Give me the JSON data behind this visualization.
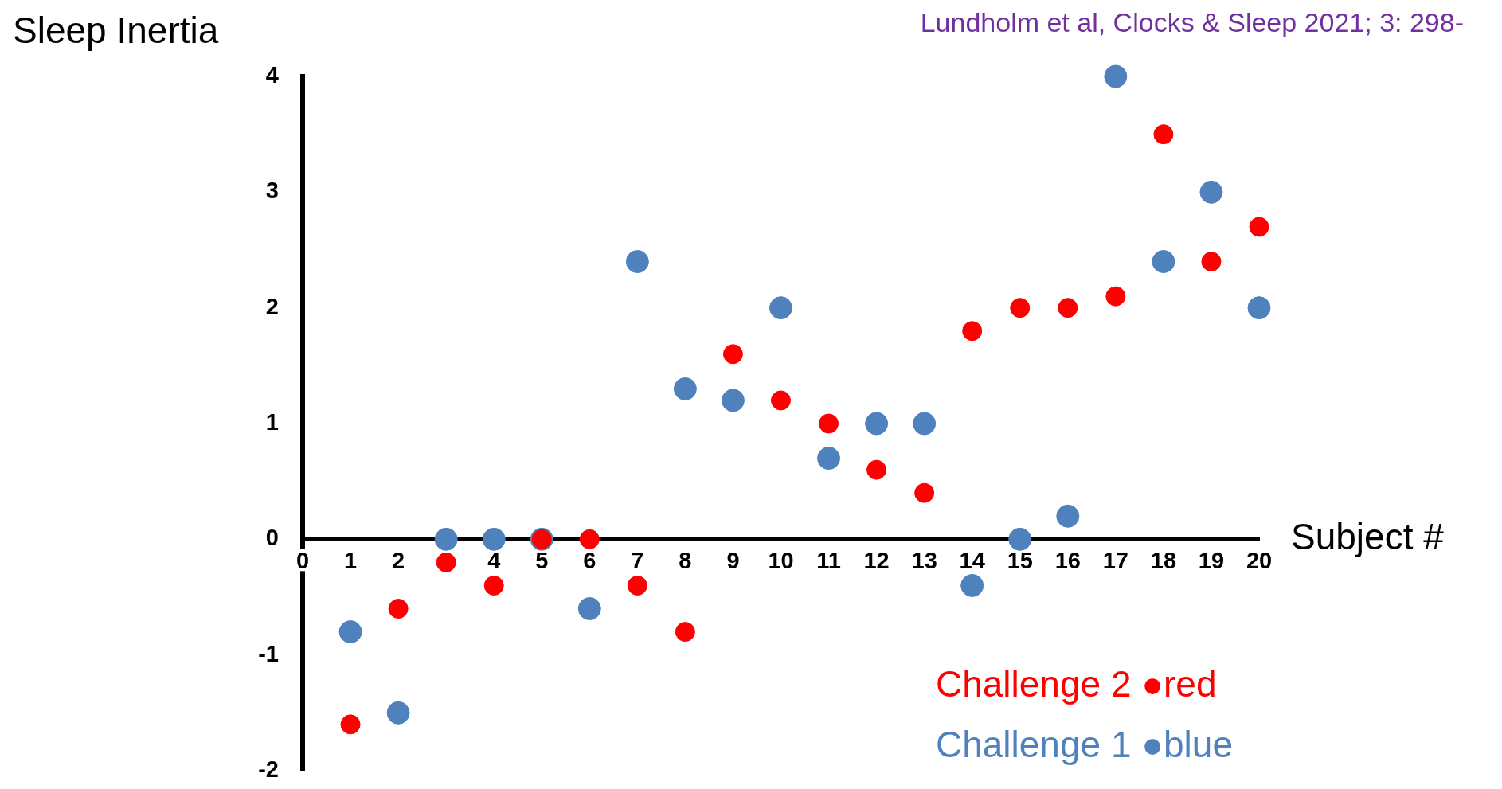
{
  "chart_data": {
    "type": "scatter",
    "ylabel": "Sleep Inertia",
    "xlabel": "Subject #",
    "annotations": [
      "Lundholm et al, Clocks & Sleep 2021; 3: 298-"
    ],
    "x": [
      1,
      2,
      3,
      4,
      5,
      6,
      7,
      8,
      9,
      10,
      11,
      12,
      13,
      14,
      15,
      16,
      17,
      18,
      19,
      20
    ],
    "series": [
      {
        "name": "Challenge 1 ●blue",
        "color": "#4f81bd",
        "values": [
          -0.8,
          -1.5,
          0,
          0,
          0,
          -0.6,
          2.4,
          1.3,
          1.2,
          2,
          0.7,
          1,
          1,
          -0.4,
          0,
          0.2,
          4,
          2.4,
          3,
          2
        ]
      },
      {
        "name": "Challenge 2 ●red",
        "color": "#ff0000",
        "values": [
          -1.6,
          -0.6,
          -0.2,
          -0.4,
          0,
          0,
          -0.4,
          -0.8,
          1.6,
          1.2,
          1,
          0.6,
          0.4,
          1.8,
          2,
          2,
          2.1,
          3.5,
          2.4,
          2.7
        ]
      }
    ],
    "xlim": [
      0,
      20
    ],
    "xticks": [
      0,
      1,
      2,
      3,
      4,
      5,
      6,
      7,
      8,
      9,
      10,
      11,
      12,
      13,
      14,
      15,
      16,
      17,
      18,
      19,
      20
    ],
    "ylim": [
      -2,
      4
    ],
    "yticks": [
      -2,
      -1,
      0,
      1,
      2,
      3,
      4
    ],
    "grid": false,
    "legend": "bottom right",
    "marker": "circle"
  }
}
